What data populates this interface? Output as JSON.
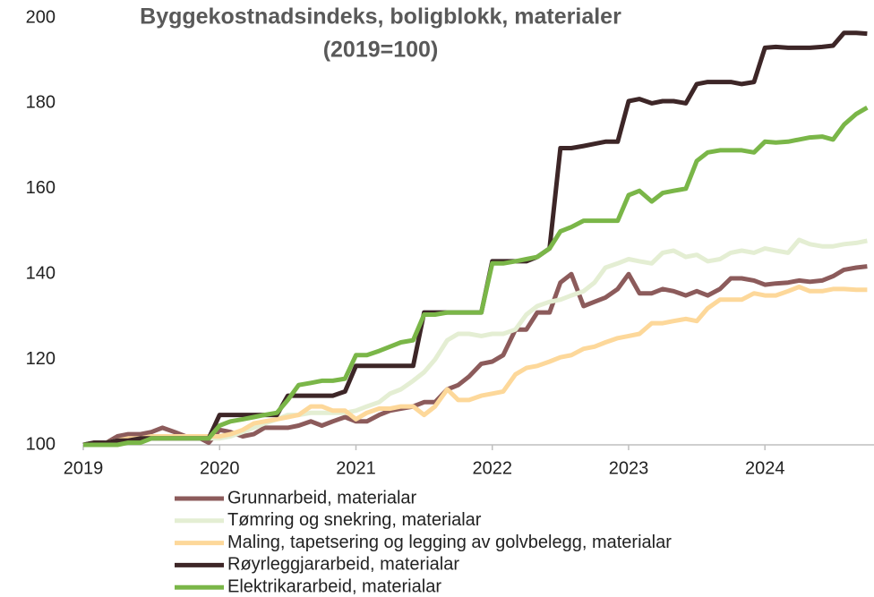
{
  "chart_data": {
    "type": "line",
    "title": [
      "Byggekostnadsindeks, boligblokk, materialer",
      "(2019=100)"
    ],
    "x": [
      2019.0,
      2019.08,
      2019.17,
      2019.25,
      2019.33,
      2019.42,
      2019.5,
      2019.58,
      2019.67,
      2019.75,
      2019.83,
      2019.92,
      2020.0,
      2020.08,
      2020.17,
      2020.25,
      2020.33,
      2020.42,
      2020.5,
      2020.58,
      2020.67,
      2020.75,
      2020.83,
      2020.92,
      2021.0,
      2021.08,
      2021.17,
      2021.25,
      2021.33,
      2021.42,
      2021.5,
      2021.58,
      2021.67,
      2021.75,
      2021.83,
      2021.92,
      2022.0,
      2022.08,
      2022.17,
      2022.25,
      2022.33,
      2022.42,
      2022.5,
      2022.58,
      2022.67,
      2022.75,
      2022.83,
      2022.92,
      2023.0,
      2023.08,
      2023.17,
      2023.25,
      2023.33,
      2023.42,
      2023.5,
      2023.58,
      2023.67,
      2023.75,
      2023.83,
      2023.92,
      2024.0,
      2024.08,
      2024.17,
      2024.25,
      2024.33,
      2024.42,
      2024.5,
      2024.58,
      2024.67,
      2024.75
    ],
    "series": [
      {
        "name": "Grunnarbeid, materialar",
        "color": "#8c5b5b",
        "values": [
          100,
          100.5,
          100.5,
          102,
          102.5,
          102.5,
          103,
          104,
          103,
          102,
          102,
          100.5,
          103.5,
          103,
          102,
          102.5,
          104,
          104,
          104,
          104.5,
          105.5,
          104.5,
          105.5,
          106.5,
          105.5,
          105.5,
          107,
          108,
          108.5,
          109,
          110,
          110,
          113,
          114,
          116,
          119,
          119.5,
          121,
          127,
          127,
          131,
          131,
          138,
          140,
          132.5,
          133.5,
          134.5,
          136.5,
          140,
          135.5,
          135.5,
          136.5,
          136,
          135,
          136,
          135,
          136.5,
          139,
          139,
          138.5,
          137.5,
          137.8,
          138,
          138.5,
          138.2,
          138.5,
          139.5,
          141,
          141.5,
          141.8
        ]
      },
      {
        "name": "Tømring og snekring, materialar",
        "color": "#e4eed3",
        "values": [
          100,
          100,
          100.5,
          101,
          101,
          101,
          101.5,
          101.5,
          101.5,
          101.5,
          101.5,
          101.5,
          101.5,
          102,
          103,
          104,
          105,
          106,
          107,
          107,
          107.5,
          107.5,
          107.5,
          107.5,
          108,
          109,
          110,
          112,
          113,
          115,
          117,
          120,
          124.5,
          126,
          126,
          125.5,
          126,
          126,
          127,
          130.5,
          132.5,
          133.5,
          134,
          135,
          136,
          138,
          141.5,
          142.5,
          143.5,
          143,
          142.5,
          145,
          145.5,
          144,
          144.5,
          143,
          143.5,
          145,
          145.5,
          145,
          146,
          145.5,
          145,
          148,
          147,
          146.5,
          146.5,
          147,
          147.3,
          147.8
        ]
      },
      {
        "name": "Maling, tapetsering og legging av golvbelegg, materialar",
        "color": "#fdd89a",
        "values": [
          100,
          100,
          100.5,
          101,
          101.5,
          101.5,
          102,
          102,
          102,
          102,
          102,
          102,
          102,
          102.5,
          103.5,
          105,
          105.5,
          106,
          106.5,
          107,
          109,
          109,
          108,
          108,
          106,
          107.5,
          108.5,
          108.5,
          109,
          109,
          107,
          109,
          113,
          110.5,
          110.5,
          111.5,
          112,
          112.5,
          116.5,
          118,
          118.5,
          119.5,
          120.5,
          121,
          122.5,
          123,
          124,
          125,
          125.5,
          126,
          128.5,
          128.5,
          129,
          129.5,
          129,
          132,
          134,
          134,
          134,
          135.5,
          135,
          135,
          136,
          137,
          136,
          136,
          136.5,
          136.5,
          136.3,
          136.3
        ]
      },
      {
        "name": "Røyrleggjararbeid, materialar",
        "color": "#3d2627",
        "values": [
          100,
          100.5,
          100.5,
          101,
          101,
          101.5,
          101.5,
          101.5,
          101.5,
          101.5,
          101.5,
          101.5,
          107,
          107,
          107,
          107,
          107,
          107,
          111.5,
          111.5,
          111.5,
          111.5,
          111.5,
          112.5,
          118.5,
          118.5,
          118.5,
          118.5,
          118.5,
          118.5,
          131,
          131,
          131,
          131,
          131,
          131,
          143,
          143,
          143,
          143,
          144,
          146,
          169.5,
          169.5,
          170,
          170.5,
          171,
          171,
          180.5,
          181,
          180,
          180.5,
          180.5,
          180,
          184.5,
          185,
          185,
          185,
          184.5,
          185,
          193,
          193.2,
          193,
          193,
          193,
          193.2,
          193.5,
          196.5,
          196.5,
          196.3
        ]
      },
      {
        "name": "Elektrikararbeid, materialar",
        "color": "#7ab648",
        "values": [
          100,
          100,
          100,
          100,
          100.5,
          100.5,
          101.5,
          101.5,
          101.5,
          101.5,
          101.5,
          101.5,
          104.5,
          105.5,
          106,
          106.5,
          107,
          107.5,
          110.5,
          114,
          114.5,
          115,
          115,
          115.5,
          121,
          121,
          122,
          123,
          124,
          124.5,
          130.5,
          130.5,
          131,
          131,
          131,
          131,
          142.5,
          142.5,
          143,
          143.5,
          144,
          146,
          150,
          151,
          152.5,
          152.5,
          152.5,
          152.5,
          158.5,
          159.5,
          157,
          159,
          159.5,
          160,
          166.5,
          168.5,
          169,
          169,
          169,
          168.5,
          171,
          170.8,
          171,
          171.5,
          172,
          172.2,
          171.5,
          175,
          177.5,
          179
        ]
      }
    ],
    "xlim": [
      2019,
      2024.8
    ],
    "xticks": [
      2019,
      2020,
      2021,
      2022,
      2023,
      2024
    ],
    "ylim": [
      100,
      200
    ],
    "yticks": [
      100,
      120,
      140,
      160,
      180,
      200
    ],
    "grid": false,
    "legend": "bottom"
  }
}
